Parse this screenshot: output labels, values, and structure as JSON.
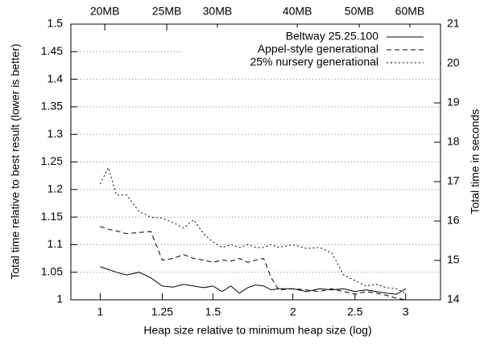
{
  "chart_data": {
    "type": "line",
    "xlabel": "Heap size relative to minimum heap size (log)",
    "ylabel": "Total time relative to best result (lower is better)",
    "y2label": "Total time in seconds",
    "xscale": "log",
    "grid": true,
    "legend": "upper right",
    "x": [
      1,
      1.03,
      1.06,
      1.1,
      1.15,
      1.2,
      1.25,
      1.3,
      1.35,
      1.4,
      1.45,
      1.5,
      1.55,
      1.6,
      1.65,
      1.7,
      1.75,
      1.8,
      1.85,
      1.9,
      2,
      2.1,
      2.2,
      2.3,
      2.4,
      2.5,
      2.6,
      2.7,
      2.8,
      2.9,
      3
    ],
    "series": [
      {
        "name": "Beltway 25.25.100",
        "color": "#000000",
        "dash": "solid",
        "values": [
          1.06,
          1.055,
          1.05,
          1.045,
          1.05,
          1.04,
          1.025,
          1.023,
          1.028,
          1.025,
          1.022,
          1.025,
          1.015,
          1.025,
          1.012,
          1.022,
          1.027,
          1.025,
          1.018,
          1.02,
          1.02,
          1.015,
          1.02,
          1.018,
          1.02,
          1.015,
          1.018,
          1.015,
          1.012,
          1.01,
          1.02
        ]
      },
      {
        "name": "Appel-style generational",
        "color": "#000000",
        "dash": "dashed",
        "values": [
          1.133,
          1.128,
          1.125,
          1.12,
          1.122,
          1.124,
          1.072,
          1.075,
          1.082,
          1.075,
          1.072,
          1.068,
          1.072,
          1.07,
          1.075,
          1.068,
          1.072,
          1.075,
          1.04,
          1.018,
          1.02,
          1.018,
          1.015,
          1.02,
          1.015,
          1.01,
          1.015,
          1.012,
          1.008,
          1.003,
          1.0
        ]
      },
      {
        "name": "25% nursery generational",
        "color": "#000000",
        "dash": "dotted",
        "values": [
          1.21,
          1.24,
          1.19,
          1.19,
          1.16,
          1.15,
          1.148,
          1.14,
          1.13,
          1.145,
          1.12,
          1.105,
          1.095,
          1.1,
          1.095,
          1.1,
          1.095,
          1.095,
          1.1,
          1.095,
          1.1,
          1.093,
          1.095,
          1.085,
          1.045,
          1.035,
          1.025,
          1.028,
          1.022,
          1.02,
          1.012
        ]
      }
    ],
    "xlim": [
      0.9,
      3.4
    ],
    "xticks": [
      1,
      1.25,
      1.5,
      2,
      2.5,
      3
    ],
    "x2lim": [
      17.7,
      67
    ],
    "x2ticks": [
      {
        "value": 20,
        "label": "20MB"
      },
      {
        "value": 25,
        "label": "25MB"
      },
      {
        "value": 30,
        "label": "30MB"
      },
      {
        "value": 40,
        "label": "40MB"
      },
      {
        "value": 50,
        "label": "50MB"
      },
      {
        "value": 60,
        "label": "60MB"
      }
    ],
    "ylim": [
      1,
      1.5
    ],
    "yticks": [
      1,
      1.05,
      1.1,
      1.15,
      1.2,
      1.25,
      1.3,
      1.35,
      1.4,
      1.45,
      1.5
    ],
    "y2lim": [
      14,
      21
    ],
    "y2ticks": [
      14,
      15,
      16,
      17,
      18,
      19,
      20,
      21
    ]
  }
}
